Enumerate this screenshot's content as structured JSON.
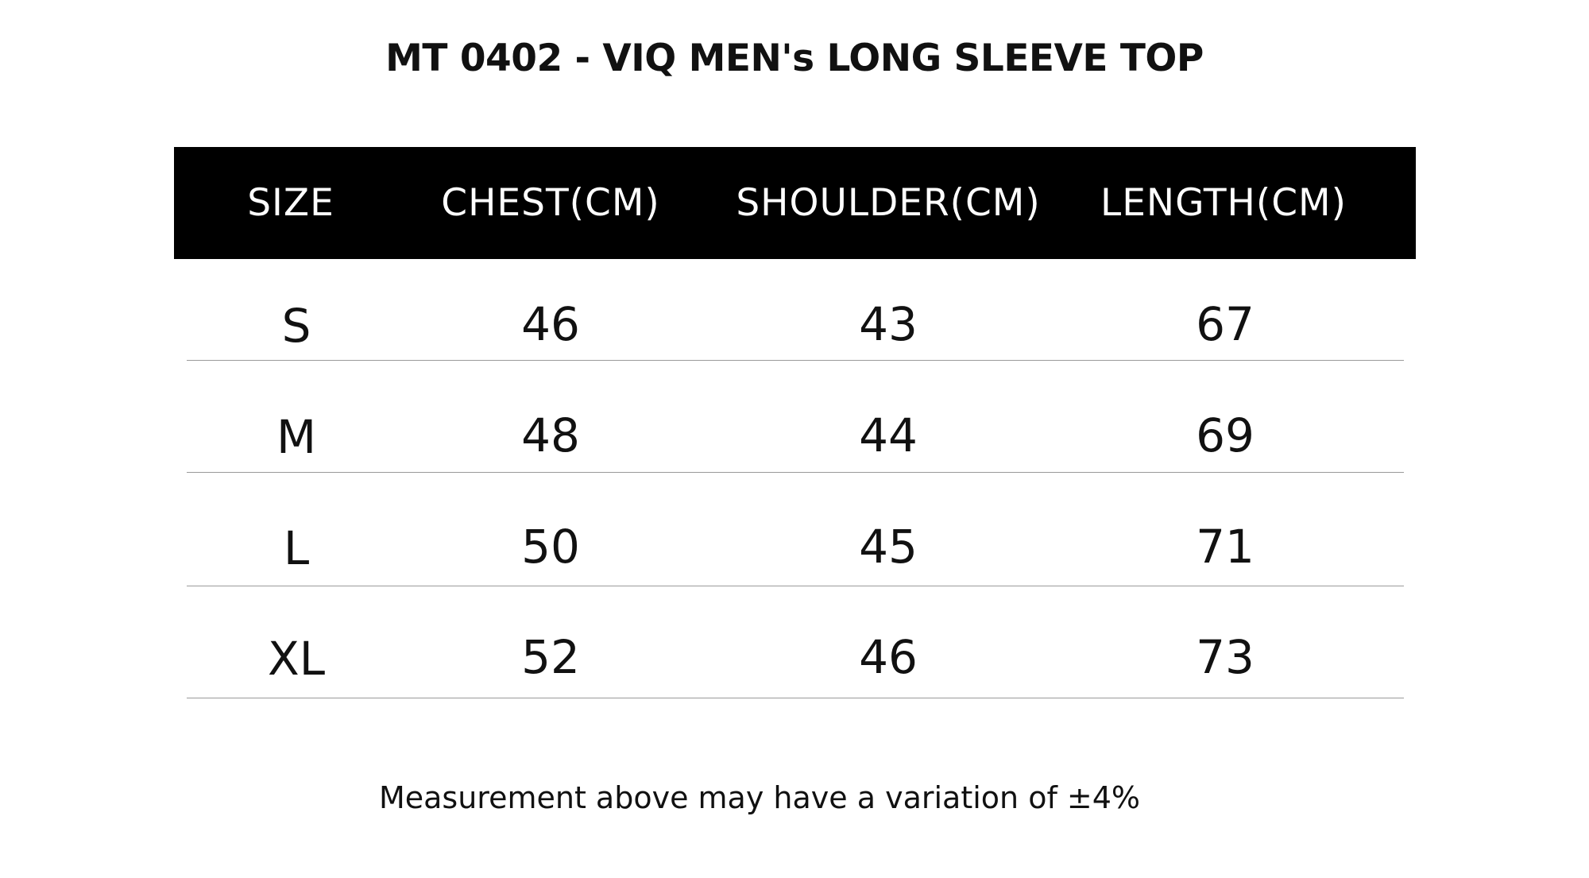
{
  "title": "MT 0402 - VIQ MEN's LONG SLEEVE TOP",
  "table": {
    "headers": [
      "SIZE",
      "CHEST(CM)",
      "SHOULDER(CM)",
      "LENGTH(CM)"
    ],
    "rows": [
      [
        "S",
        "46",
        "43",
        "67"
      ],
      [
        "M",
        "48",
        "44",
        "69"
      ],
      [
        "L",
        "50",
        "45",
        "71"
      ],
      [
        "XL",
        "52",
        "46",
        "73"
      ]
    ]
  },
  "footnote": "Measurement above may have a variation of ±4%",
  "colors": {
    "header_background": "#000000",
    "header_text": "#ffffff",
    "body_text": "#111111",
    "divider": "#9a9a9a"
  }
}
